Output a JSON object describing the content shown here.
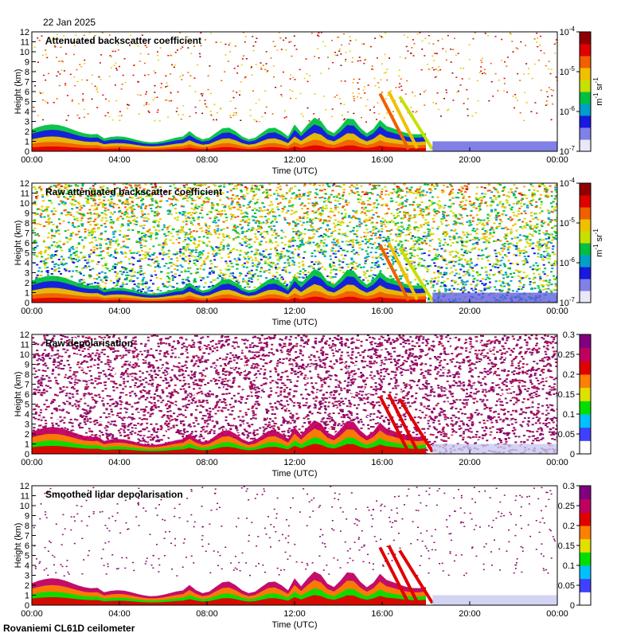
{
  "header": {
    "date": "22 Jan 2025"
  },
  "footer": {
    "instrument": "Rovaniemi CL61D ceilometer"
  },
  "colors": {
    "cmap": [
      "#e8e8f8",
      "#8080e8",
      "#1818e0",
      "#00a0c8",
      "#00c040",
      "#c8e000",
      "#f0c000",
      "#f06000",
      "#e00000",
      "#900000"
    ],
    "depol_cmap": [
      "#ffffff",
      "#4040ff",
      "#00c0ff",
      "#00e000",
      "#e0e000",
      "#ff8000",
      "#e00000",
      "#c00060",
      "#800080"
    ]
  },
  "chart_data": [
    {
      "type": "heatmap",
      "title": "Attenuated backscatter coefficient",
      "xlabel": "Time (UTC)",
      "ylabel": "Height (km)",
      "xticks": [
        "00:00",
        "04:00",
        "08:00",
        "12:00",
        "16:00",
        "20:00",
        "00:00"
      ],
      "yticks": [
        "0",
        "1",
        "2",
        "3",
        "4",
        "5",
        "6",
        "7",
        "8",
        "9",
        "10",
        "11",
        "12"
      ],
      "ylim": [
        0,
        12
      ],
      "xlim_hours": [
        0,
        24
      ],
      "colorbar": {
        "scale": "log",
        "range": [
          1e-07,
          0.0001
        ],
        "ticks": [
          "10",
          "10",
          "10",
          "10"
        ],
        "exponents": [
          "-7",
          "-6",
          "-5",
          "-4"
        ],
        "unit_base": [
          "m",
          "sr"
        ],
        "unit_exp": [
          "-1",
          "-1"
        ]
      },
      "noise": "sparse"
    },
    {
      "type": "heatmap",
      "title": "Raw attenuated backscatter coefficient",
      "xlabel": "Time (UTC)",
      "ylabel": "Height (km)",
      "xticks": [
        "00:00",
        "04:00",
        "08:00",
        "12:00",
        "16:00",
        "20:00",
        "00:00"
      ],
      "yticks": [
        "0",
        "1",
        "2",
        "3",
        "4",
        "5",
        "6",
        "7",
        "8",
        "9",
        "10",
        "11",
        "12"
      ],
      "ylim": [
        0,
        12
      ],
      "xlim_hours": [
        0,
        24
      ],
      "colorbar": {
        "scale": "log",
        "range": [
          1e-07,
          0.0001
        ],
        "ticks": [
          "10",
          "10",
          "10",
          "10"
        ],
        "exponents": [
          "-7",
          "-6",
          "-5",
          "-4"
        ],
        "unit_base": [
          "m",
          "sr"
        ],
        "unit_exp": [
          "-1",
          "-1"
        ]
      },
      "noise": "dense"
    },
    {
      "type": "heatmap",
      "title": "Raw depolarisation",
      "xlabel": "Time (UTC)",
      "ylabel": "Height (km)",
      "xticks": [
        "00:00",
        "04:00",
        "08:00",
        "12:00",
        "16:00",
        "20:00",
        "00:00"
      ],
      "yticks": [
        "0",
        "1",
        "2",
        "3",
        "4",
        "5",
        "6",
        "7",
        "8",
        "9",
        "10",
        "11",
        "12"
      ],
      "ylim": [
        0,
        12
      ],
      "xlim_hours": [
        0,
        24
      ],
      "colorbar": {
        "scale": "linear",
        "range": [
          0,
          0.3
        ],
        "ticks": [
          "0",
          "0.05",
          "0.1",
          "0.15",
          "0.2",
          "0.25",
          "0.3"
        ]
      },
      "noise": "depol-dense"
    },
    {
      "type": "heatmap",
      "title": "Smoothed lidar depolarisation",
      "xlabel": "Time (UTC)",
      "ylabel": "Height (km)",
      "xticks": [
        "00:00",
        "04:00",
        "08:00",
        "12:00",
        "16:00",
        "20:00",
        "00:00"
      ],
      "yticks": [
        "0",
        "1",
        "2",
        "3",
        "4",
        "5",
        "6",
        "7",
        "8",
        "9",
        "10",
        "11",
        "12"
      ],
      "ylim": [
        0,
        12
      ],
      "xlim_hours": [
        0,
        24
      ],
      "colorbar": {
        "scale": "linear",
        "range": [
          0,
          0.3
        ],
        "ticks": [
          "0",
          "0.05",
          "0.1",
          "0.15",
          "0.2",
          "0.25",
          "0.3"
        ]
      },
      "noise": "depol-sparse"
    }
  ]
}
